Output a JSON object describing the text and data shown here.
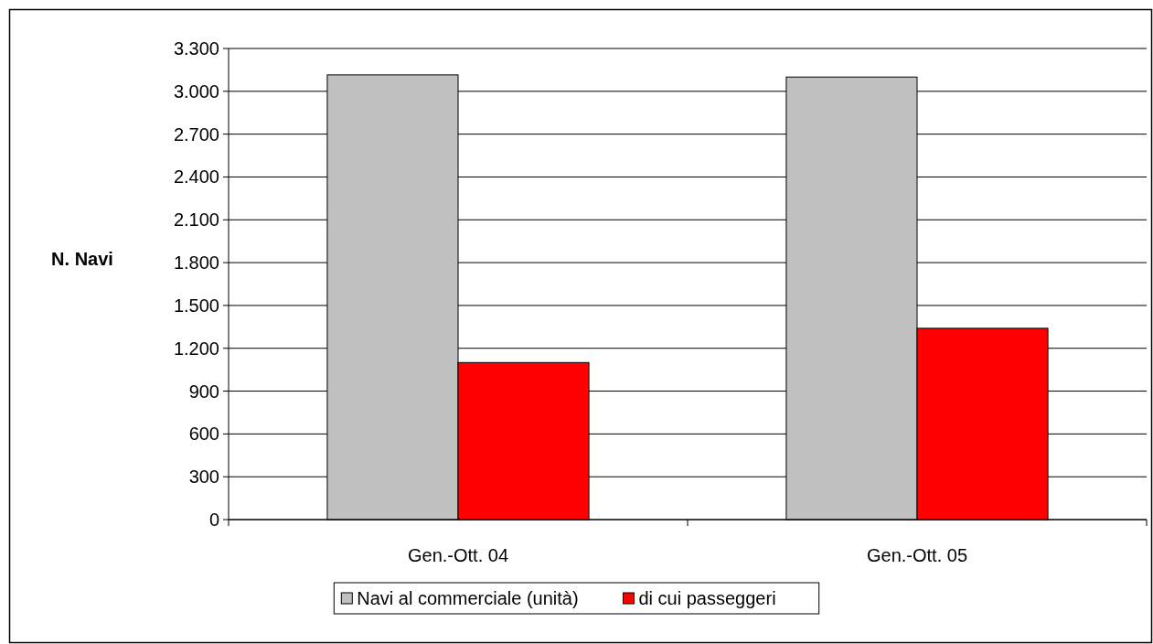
{
  "chart_data": {
    "type": "bar",
    "ylabel": "N. Navi",
    "categories": [
      "Gen.-Ott. 04",
      "Gen.-Ott. 05"
    ],
    "series": [
      {
        "name": "Navi al commerciale (unità)",
        "color": "#c0c0c0",
        "values": [
          3115,
          3100
        ]
      },
      {
        "name": "di cui passeggeri",
        "color": "#ff0000",
        "values": [
          1100,
          1340
        ]
      }
    ],
    "ylim": [
      0,
      3300
    ],
    "yticks": [
      {
        "value": 0,
        "label": "0"
      },
      {
        "value": 300,
        "label": "300"
      },
      {
        "value": 600,
        "label": "600"
      },
      {
        "value": 900,
        "label": "900"
      },
      {
        "value": 1200,
        "label": "1.200"
      },
      {
        "value": 1500,
        "label": "1.500"
      },
      {
        "value": 1800,
        "label": "1.800"
      },
      {
        "value": 2100,
        "label": "2.100"
      },
      {
        "value": 2400,
        "label": "2.400"
      },
      {
        "value": 2700,
        "label": "2.700"
      },
      {
        "value": 3000,
        "label": "3.000"
      },
      {
        "value": 3300,
        "label": "3.300"
      }
    ],
    "grid": "y",
    "legend": "bottom"
  }
}
